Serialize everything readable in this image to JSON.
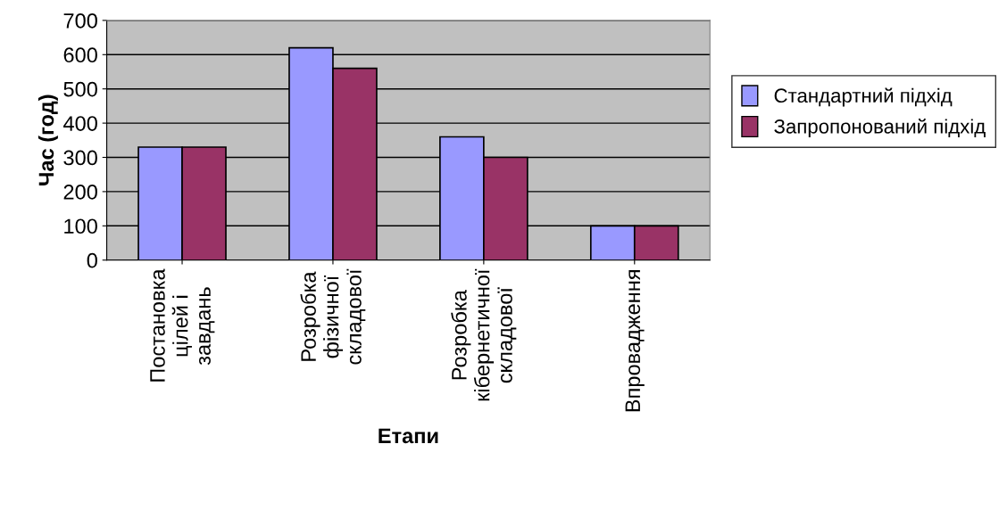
{
  "chart_data": {
    "type": "bar",
    "xlabel": "Етапи",
    "ylabel": "Час (год)",
    "categories": [
      "Постановка\nцілей і\nзавдань",
      "Розробка\nфізичної\nскладової",
      "Розробка\nкібернетичної\nскладової",
      "Впровадження"
    ],
    "series": [
      {
        "name": "Стандартний підхід",
        "color": "#9999ff",
        "values": [
          330,
          620,
          360,
          100
        ]
      },
      {
        "name": "Запропонований підхід",
        "color": "#993366",
        "values": [
          330,
          560,
          300,
          100
        ]
      }
    ],
    "ylim": [
      0,
      700
    ],
    "yticks": [
      0,
      100,
      200,
      300,
      400,
      500,
      600,
      700
    ],
    "grid": "y",
    "legend": "right"
  }
}
